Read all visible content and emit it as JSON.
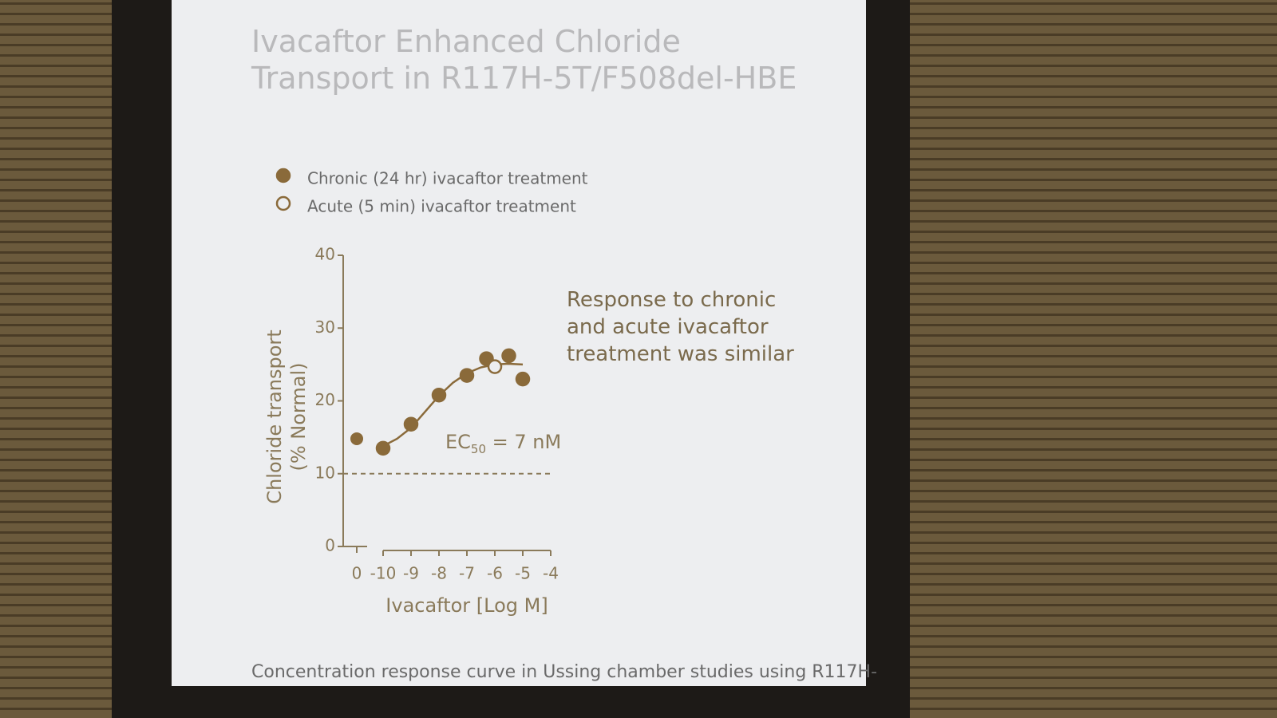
{
  "chart_data": {
    "type": "scatter",
    "title": "Ivacaftor Enhanced Chloride Transport in R117H-5T/F508del-HBE",
    "xlabel": "Ivacaftor [Log M]",
    "ylabel": "Chloride transport",
    "ylabel_sub": "(% Normal)",
    "xlim": [
      -10,
      -4
    ],
    "xticks": [
      -10,
      -9,
      -8,
      -7,
      -6,
      -5,
      -4
    ],
    "ylim": [
      0,
      40
    ],
    "yticks": [
      0,
      10,
      20,
      30,
      40
    ],
    "control": {
      "tick": "0",
      "chronic": 14.8
    },
    "series": [
      {
        "name": "Chronic (24 hr) ivacaftor treatment",
        "color": "#8a6a3a",
        "filled": true,
        "x": [
          -10,
          -9,
          -8,
          -7,
          -6.3,
          -5.5,
          -5
        ],
        "values": [
          13.5,
          16.8,
          20.8,
          23.5,
          25.8,
          26.2,
          23
        ]
      },
      {
        "name": "Acute (5 min) ivacaftor treatment",
        "color": "#8a6a3a",
        "filled": false,
        "x": [
          -6
        ],
        "values": [
          24.7
        ]
      }
    ],
    "fit": {
      "x": [
        -10,
        -9.5,
        -9,
        -8.5,
        -8,
        -7.5,
        -7,
        -6.5,
        -6,
        -5.5,
        -5
      ],
      "y": [
        13.8,
        14.8,
        16.3,
        18.5,
        20.7,
        22.5,
        23.8,
        24.6,
        25,
        25.1,
        25
      ]
    },
    "reference_line": 10,
    "annotation": [
      "EC",
      "50",
      " = 7 nM"
    ],
    "side_note": "Response to chronic and acute ivacaftor treatment was similar",
    "caption": "Concentration response curve in Ussing chamber studies using R117H-"
  }
}
